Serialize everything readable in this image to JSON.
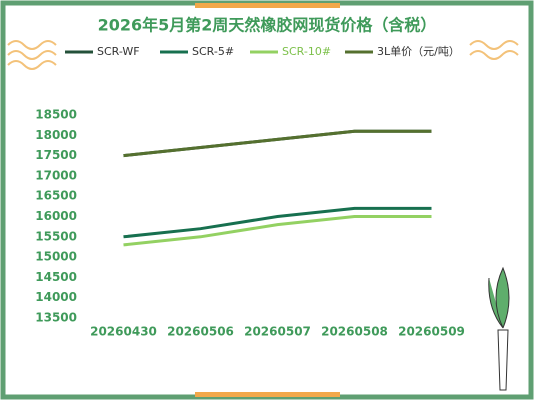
{
  "chart_data": {
    "type": "line",
    "title": "2026年5月第2周天然橡胶网现货价格（含税）",
    "categories": [
      "20260430",
      "20260506",
      "20260507",
      "20260508",
      "20260509"
    ],
    "series": [
      {
        "name": "SCR-WF",
        "color": "#24513a",
        "values": [
          17500,
          17700,
          17900,
          18100,
          18100
        ]
      },
      {
        "name": "SCR-5#",
        "color": "#17704f",
        "values": [
          15500,
          15700,
          16000,
          16200,
          16200
        ]
      },
      {
        "name": "SCR-10#",
        "color": "#93d162",
        "values": [
          15300,
          15500,
          15800,
          16000,
          16000
        ]
      },
      {
        "name": "3L单价（元/吨）",
        "color": "#55702f",
        "values": [
          17500,
          17700,
          17900,
          18100,
          18100
        ]
      }
    ],
    "ylim": [
      13500,
      18500
    ],
    "yticks": [
      13500,
      14000,
      14500,
      15000,
      15500,
      16000,
      16500,
      17000,
      17500,
      18000,
      18500
    ]
  }
}
